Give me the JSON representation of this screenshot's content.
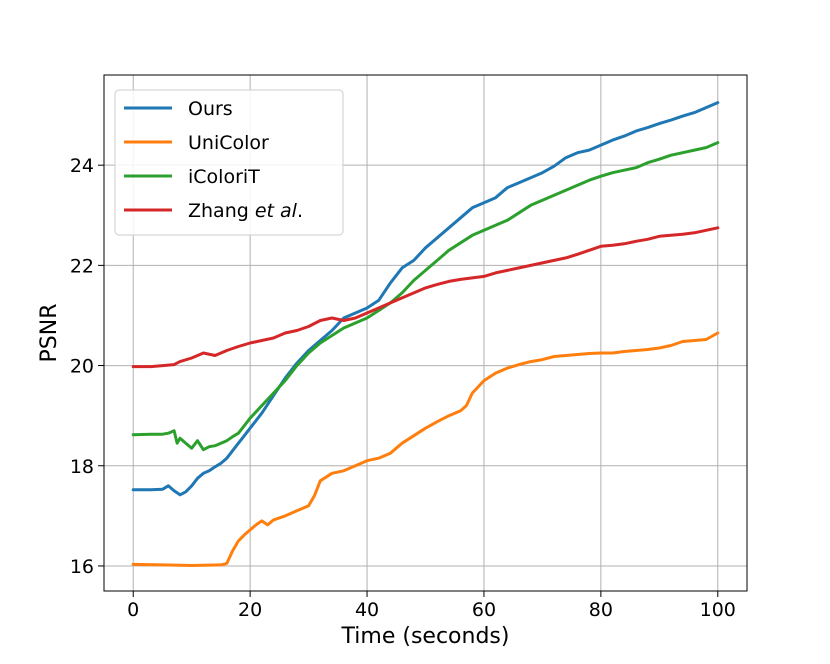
{
  "chart_data": {
    "type": "line",
    "xlabel": "Time (seconds)",
    "ylabel": "PSNR",
    "xlim": [
      -5,
      105
    ],
    "ylim": [
      15.5,
      25.8
    ],
    "xticks": [
      0,
      20,
      40,
      60,
      80,
      100
    ],
    "yticks": [
      16,
      18,
      20,
      22,
      24
    ],
    "grid": true,
    "legend_position": "top-left",
    "series": [
      {
        "name": "Ours",
        "color": "#1f77b4",
        "points": [
          [
            0,
            17.52
          ],
          [
            3,
            17.52
          ],
          [
            5,
            17.53
          ],
          [
            6,
            17.6
          ],
          [
            7,
            17.5
          ],
          [
            8,
            17.42
          ],
          [
            9,
            17.48
          ],
          [
            10,
            17.6
          ],
          [
            11,
            17.75
          ],
          [
            12,
            17.85
          ],
          [
            13,
            17.9
          ],
          [
            14,
            17.98
          ],
          [
            15,
            18.05
          ],
          [
            16,
            18.15
          ],
          [
            17,
            18.3
          ],
          [
            18,
            18.45
          ],
          [
            19,
            18.6
          ],
          [
            20,
            18.75
          ],
          [
            22,
            19.05
          ],
          [
            24,
            19.4
          ],
          [
            26,
            19.75
          ],
          [
            28,
            20.05
          ],
          [
            30,
            20.3
          ],
          [
            32,
            20.5
          ],
          [
            34,
            20.7
          ],
          [
            36,
            20.95
          ],
          [
            38,
            21.05
          ],
          [
            40,
            21.15
          ],
          [
            42,
            21.3
          ],
          [
            44,
            21.65
          ],
          [
            46,
            21.95
          ],
          [
            48,
            22.1
          ],
          [
            50,
            22.35
          ],
          [
            52,
            22.55
          ],
          [
            54,
            22.75
          ],
          [
            56,
            22.95
          ],
          [
            58,
            23.15
          ],
          [
            60,
            23.25
          ],
          [
            62,
            23.35
          ],
          [
            64,
            23.55
          ],
          [
            66,
            23.65
          ],
          [
            68,
            23.75
          ],
          [
            70,
            23.85
          ],
          [
            72,
            23.98
          ],
          [
            74,
            24.15
          ],
          [
            76,
            24.25
          ],
          [
            78,
            24.3
          ],
          [
            80,
            24.4
          ],
          [
            82,
            24.5
          ],
          [
            84,
            24.58
          ],
          [
            86,
            24.68
          ],
          [
            88,
            24.75
          ],
          [
            90,
            24.83
          ],
          [
            92,
            24.9
          ],
          [
            94,
            24.98
          ],
          [
            96,
            25.05
          ],
          [
            98,
            25.15
          ],
          [
            100,
            25.25
          ]
        ]
      },
      {
        "name": "UniColor",
        "color": "#ff7f0e",
        "points": [
          [
            0,
            16.03
          ],
          [
            5,
            16.02
          ],
          [
            10,
            16.01
          ],
          [
            15,
            16.02
          ],
          [
            16,
            16.05
          ],
          [
            17,
            16.3
          ],
          [
            18,
            16.5
          ],
          [
            19,
            16.62
          ],
          [
            20,
            16.72
          ],
          [
            21,
            16.82
          ],
          [
            22,
            16.9
          ],
          [
            23,
            16.82
          ],
          [
            24,
            16.92
          ],
          [
            26,
            17.0
          ],
          [
            28,
            17.1
          ],
          [
            30,
            17.2
          ],
          [
            31,
            17.4
          ],
          [
            32,
            17.7
          ],
          [
            34,
            17.85
          ],
          [
            36,
            17.9
          ],
          [
            38,
            18.0
          ],
          [
            40,
            18.1
          ],
          [
            42,
            18.15
          ],
          [
            44,
            18.25
          ],
          [
            46,
            18.45
          ],
          [
            48,
            18.6
          ],
          [
            50,
            18.75
          ],
          [
            52,
            18.88
          ],
          [
            54,
            19.0
          ],
          [
            56,
            19.1
          ],
          [
            57,
            19.2
          ],
          [
            58,
            19.45
          ],
          [
            60,
            19.7
          ],
          [
            62,
            19.85
          ],
          [
            64,
            19.95
          ],
          [
            66,
            20.02
          ],
          [
            68,
            20.08
          ],
          [
            70,
            20.12
          ],
          [
            72,
            20.18
          ],
          [
            74,
            20.2
          ],
          [
            76,
            20.22
          ],
          [
            78,
            20.24
          ],
          [
            80,
            20.25
          ],
          [
            82,
            20.25
          ],
          [
            84,
            20.28
          ],
          [
            86,
            20.3
          ],
          [
            88,
            20.32
          ],
          [
            90,
            20.35
          ],
          [
            92,
            20.4
          ],
          [
            94,
            20.48
          ],
          [
            96,
            20.5
          ],
          [
            98,
            20.52
          ],
          [
            100,
            20.65
          ]
        ]
      },
      {
        "name": "iColoriT",
        "color": "#2ca02c",
        "points": [
          [
            0,
            18.62
          ],
          [
            3,
            18.63
          ],
          [
            5,
            18.63
          ],
          [
            6,
            18.65
          ],
          [
            7,
            18.7
          ],
          [
            7.5,
            18.45
          ],
          [
            8,
            18.55
          ],
          [
            9,
            18.45
          ],
          [
            10,
            18.35
          ],
          [
            11,
            18.5
          ],
          [
            12,
            18.32
          ],
          [
            13,
            18.38
          ],
          [
            14,
            18.4
          ],
          [
            15,
            18.45
          ],
          [
            16,
            18.5
          ],
          [
            17,
            18.58
          ],
          [
            18,
            18.65
          ],
          [
            19,
            18.8
          ],
          [
            20,
            18.95
          ],
          [
            22,
            19.2
          ],
          [
            24,
            19.45
          ],
          [
            26,
            19.7
          ],
          [
            28,
            20.0
          ],
          [
            30,
            20.25
          ],
          [
            32,
            20.45
          ],
          [
            34,
            20.6
          ],
          [
            36,
            20.75
          ],
          [
            38,
            20.85
          ],
          [
            40,
            20.95
          ],
          [
            42,
            21.1
          ],
          [
            44,
            21.25
          ],
          [
            46,
            21.45
          ],
          [
            48,
            21.7
          ],
          [
            50,
            21.9
          ],
          [
            52,
            22.1
          ],
          [
            54,
            22.3
          ],
          [
            56,
            22.45
          ],
          [
            58,
            22.6
          ],
          [
            60,
            22.7
          ],
          [
            62,
            22.8
          ],
          [
            64,
            22.9
          ],
          [
            66,
            23.05
          ],
          [
            68,
            23.2
          ],
          [
            70,
            23.3
          ],
          [
            72,
            23.4
          ],
          [
            74,
            23.5
          ],
          [
            76,
            23.6
          ],
          [
            78,
            23.7
          ],
          [
            80,
            23.78
          ],
          [
            82,
            23.85
          ],
          [
            84,
            23.9
          ],
          [
            86,
            23.95
          ],
          [
            88,
            24.05
          ],
          [
            90,
            24.12
          ],
          [
            92,
            24.2
          ],
          [
            94,
            24.25
          ],
          [
            96,
            24.3
          ],
          [
            98,
            24.35
          ],
          [
            100,
            24.45
          ]
        ]
      },
      {
        "name": "Zhang et al.",
        "color": "#d62728",
        "points": [
          [
            0,
            19.98
          ],
          [
            3,
            19.98
          ],
          [
            5,
            20.0
          ],
          [
            7,
            20.02
          ],
          [
            8,
            20.08
          ],
          [
            10,
            20.15
          ],
          [
            12,
            20.25
          ],
          [
            14,
            20.2
          ],
          [
            16,
            20.3
          ],
          [
            18,
            20.38
          ],
          [
            20,
            20.45
          ],
          [
            22,
            20.5
          ],
          [
            24,
            20.55
          ],
          [
            26,
            20.65
          ],
          [
            28,
            20.7
          ],
          [
            30,
            20.78
          ],
          [
            32,
            20.9
          ],
          [
            34,
            20.95
          ],
          [
            36,
            20.9
          ],
          [
            38,
            20.95
          ],
          [
            40,
            21.05
          ],
          [
            42,
            21.15
          ],
          [
            44,
            21.25
          ],
          [
            46,
            21.35
          ],
          [
            48,
            21.45
          ],
          [
            50,
            21.55
          ],
          [
            52,
            21.62
          ],
          [
            54,
            21.68
          ],
          [
            56,
            21.72
          ],
          [
            58,
            21.75
          ],
          [
            60,
            21.78
          ],
          [
            62,
            21.85
          ],
          [
            64,
            21.9
          ],
          [
            66,
            21.95
          ],
          [
            68,
            22.0
          ],
          [
            70,
            22.05
          ],
          [
            72,
            22.1
          ],
          [
            74,
            22.15
          ],
          [
            76,
            22.22
          ],
          [
            78,
            22.3
          ],
          [
            80,
            22.38
          ],
          [
            82,
            22.4
          ],
          [
            84,
            22.43
          ],
          [
            86,
            22.48
          ],
          [
            88,
            22.52
          ],
          [
            90,
            22.58
          ],
          [
            92,
            22.6
          ],
          [
            94,
            22.62
          ],
          [
            96,
            22.65
          ],
          [
            98,
            22.7
          ],
          [
            100,
            22.75
          ]
        ]
      }
    ]
  },
  "legend": {
    "entries": [
      {
        "label": "Ours"
      },
      {
        "label": "UniColor"
      },
      {
        "label": "iColoriT"
      },
      {
        "label_main": "Zhang ",
        "label_italic": "et al",
        "label_tail": "."
      }
    ]
  }
}
